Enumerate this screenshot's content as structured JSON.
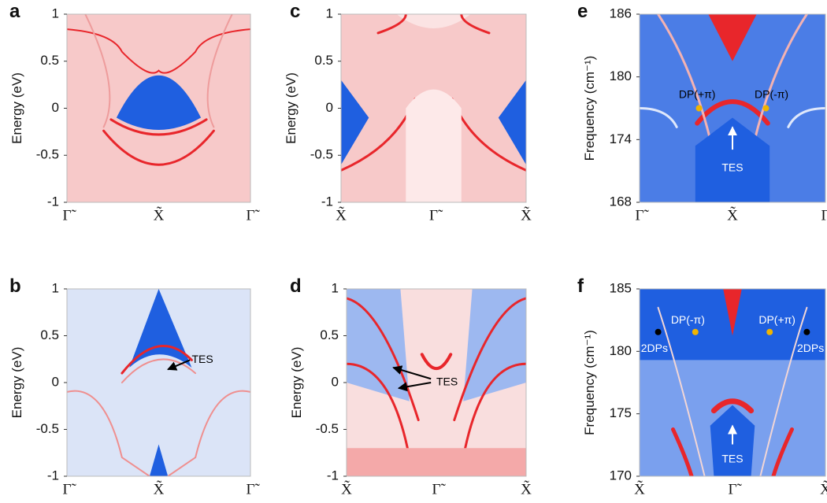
{
  "chart_data": [
    {
      "type": "heatmap",
      "panel": "a",
      "ylabel": "Energy (eV)",
      "categories": [
        "Γ̃",
        "X̃",
        "Γ̃"
      ],
      "ylim": [
        -1,
        1
      ],
      "yticks": [
        -1,
        -0.5,
        0,
        0.5,
        1
      ],
      "annotations": []
    },
    {
      "type": "heatmap",
      "panel": "b",
      "ylabel": "Energy (eV)",
      "categories": [
        "Γ̃",
        "X̃",
        "Γ̃"
      ],
      "ylim": [
        -1,
        1
      ],
      "yticks": [
        -1,
        -0.5,
        0,
        0.5,
        1
      ],
      "annotations": [
        "TES"
      ]
    },
    {
      "type": "heatmap",
      "panel": "c",
      "ylabel": "Energy (eV)",
      "categories": [
        "X̃",
        "Γ̃",
        "X̃"
      ],
      "ylim": [
        -1,
        1
      ],
      "yticks": [
        -1,
        -0.5,
        0,
        0.5,
        1
      ],
      "annotations": []
    },
    {
      "type": "heatmap",
      "panel": "d",
      "ylabel": "Energy (eV)",
      "categories": [
        "X̃",
        "Γ̃",
        "X̃"
      ],
      "ylim": [
        -1,
        1
      ],
      "yticks": [
        -1,
        -0.5,
        0,
        0.5,
        1
      ],
      "annotations": [
        "TES"
      ]
    },
    {
      "type": "heatmap",
      "panel": "e",
      "ylabel": "Frequency (cm⁻¹)",
      "categories": [
        "Γ̃",
        "X̃",
        "Γ̃"
      ],
      "ylim": [
        168,
        186
      ],
      "yticks": [
        168,
        174,
        180,
        186
      ],
      "annotations": [
        "DP(+π)",
        "DP(-π)",
        "TES"
      ]
    },
    {
      "type": "heatmap",
      "panel": "f",
      "ylabel": "Frequency (cm⁻¹)",
      "categories": [
        "X̃",
        "Γ̃",
        "X̃"
      ],
      "ylim": [
        170,
        185
      ],
      "yticks": [
        170,
        175,
        180,
        185
      ],
      "annotations": [
        "2DPs",
        "DP(-π)",
        "DP(+π)",
        "2DPs",
        "TES"
      ]
    }
  ]
}
